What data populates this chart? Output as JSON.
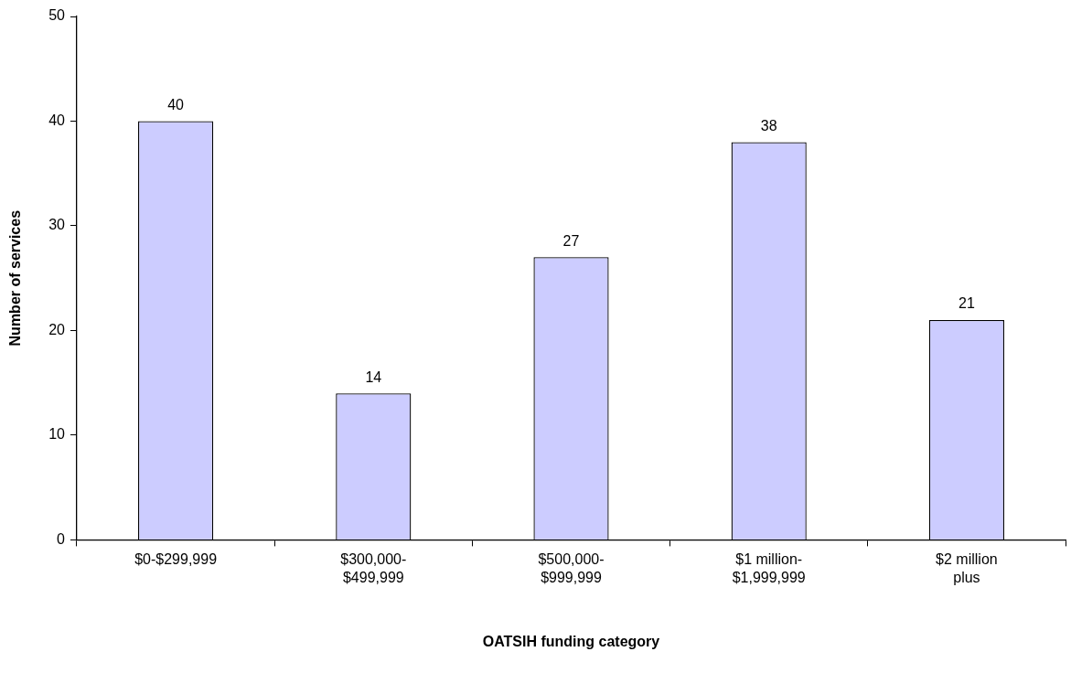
{
  "chart_data": {
    "type": "bar",
    "xlabel": "OATSIH funding category",
    "ylabel": "Number of services",
    "categories": [
      "$0-$299,999",
      "$300,000-$499,999",
      "$500,000-$999,999",
      "$1 million-$1,999,999",
      "$2 million plus"
    ],
    "values": [
      40,
      14,
      27,
      38,
      21
    ],
    "color": "#ccccff",
    "ylim": [
      0,
      50
    ],
    "yticks": [
      0,
      10,
      20,
      30,
      40,
      50
    ],
    "grid": false,
    "legend": false,
    "data_labels": true
  }
}
